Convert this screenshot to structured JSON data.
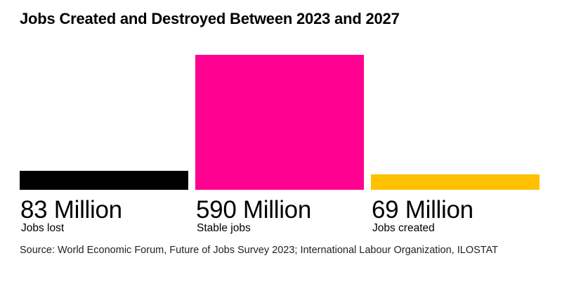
{
  "title": "Jobs Created and Destroyed Between 2023 and 2027",
  "source": "Source: World Economic Forum, Future of Jobs Survey 2023; International Labour Organization, ILOSTAT",
  "colors": {
    "jobs_lost": "#000000",
    "stable_jobs": "#ff0090",
    "jobs_created": "#ffc100"
  },
  "chart_data": {
    "type": "bar",
    "title": "Jobs Created and Destroyed Between 2023 and 2027",
    "xlabel": "",
    "ylabel": "",
    "unit": "Million",
    "categories": [
      "Jobs lost",
      "Stable jobs",
      "Jobs created"
    ],
    "values": [
      83,
      590,
      69
    ],
    "value_labels": [
      "83 Million",
      "590 Million",
      "69 Million"
    ],
    "encoding": "bar area proportional to value",
    "grid": false,
    "legend": "none"
  }
}
